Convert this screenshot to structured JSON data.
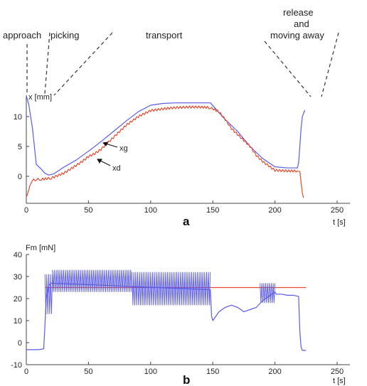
{
  "colors": {
    "blue": "#5a5ae6",
    "red": "#e64a2e",
    "axis": "#444444",
    "dash": "#333333"
  },
  "phase_labels": {
    "approach": "approach",
    "picking": "picking",
    "transport": "transport",
    "release": "release",
    "and": "and",
    "moving_away": "moving away"
  },
  "chart_data": [
    {
      "panel": "a",
      "type": "line",
      "xlabel": "t [s]",
      "ylabel": "x [mm]",
      "xlim": [
        0,
        250
      ],
      "ylim": [
        -4,
        14
      ],
      "xticks": [
        0,
        50,
        100,
        150,
        200,
        250
      ],
      "yticks": [
        0,
        5,
        10
      ],
      "series": [
        {
          "name": "xg",
          "color": "#5a5ae6",
          "x": [
            0,
            2,
            5,
            8,
            12,
            15,
            18,
            22,
            30,
            40,
            50,
            60,
            70,
            80,
            90,
            100,
            110,
            120,
            130,
            140,
            148,
            160,
            170,
            180,
            190,
            200,
            210,
            218,
            219,
            220,
            221,
            222,
            224
          ],
          "y": [
            13.5,
            12,
            8,
            2,
            1.2,
            0.5,
            0.2,
            0.4,
            1.5,
            2.7,
            4.2,
            5.8,
            7.5,
            9.2,
            10.8,
            11.9,
            12.2,
            12.3,
            12.3,
            12.3,
            12.3,
            9.5,
            7.5,
            5.0,
            3.0,
            1.6,
            1.4,
            1.4,
            2.2,
            5.0,
            8.0,
            10.0,
            11.1
          ]
        },
        {
          "name": "xd",
          "color": "#e64a2e",
          "x": [
            0,
            1,
            3,
            5,
            8,
            12,
            20,
            30,
            40,
            45,
            50,
            55,
            60,
            70,
            80,
            90,
            100,
            110,
            120,
            130,
            140,
            148,
            155,
            160,
            165,
            170,
            175,
            180,
            185,
            190,
            200,
            210,
            218,
            220,
            221,
            222,
            223
          ],
          "y": [
            -3.5,
            -3.0,
            -1.5,
            -0.7,
            -0.5,
            -0.5,
            -0.3,
            0.5,
            1.8,
            2.5,
            3.3,
            3.8,
            4.5,
            6.5,
            8.5,
            10.0,
            11.0,
            11.3,
            11.5,
            11.6,
            11.6,
            11.5,
            10.8,
            9.5,
            8.0,
            7.0,
            6.0,
            5.0,
            3.5,
            2.5,
            1.0,
            0.9,
            0.9,
            0.8,
            -1.0,
            -2.8,
            -3.6
          ]
        }
      ]
    },
    {
      "panel": "b",
      "type": "line",
      "xlabel": "t [s]",
      "ylabel": "Fm [mN]",
      "xlim": [
        0,
        250
      ],
      "ylim": [
        -10,
        40
      ],
      "xticks": [
        0,
        50,
        100,
        150,
        200,
        250
      ],
      "yticks": [
        -10,
        0,
        10,
        20,
        30,
        40
      ],
      "threshold": {
        "y": 25,
        "x_start": 15,
        "x_end": 225,
        "color": "#e64a2e"
      },
      "series": [
        {
          "name": "Fm",
          "color": "#5a5ae6",
          "x": [
            0,
            10,
            14,
            15,
            16,
            18,
            20,
            148,
            149,
            150,
            155,
            160,
            165,
            170,
            175,
            180,
            185,
            190,
            200,
            201,
            205,
            210,
            215,
            219,
            220,
            221,
            222,
            225
          ],
          "y": [
            -3.2,
            -3.2,
            -2.8,
            8,
            20,
            26,
            27,
            24,
            12,
            10,
            14,
            16,
            17,
            16,
            14,
            15,
            16,
            19,
            23,
            22,
            22,
            21.5,
            21.5,
            21,
            5,
            -2,
            -3.5,
            -3.5
          ],
          "oscillations": [
            {
              "x_start": 15,
              "x_end": 21,
              "low": 13,
              "high": 31
            },
            {
              "x_start": 21,
              "x_end": 85,
              "low": 23,
              "high": 33
            },
            {
              "x_start": 85,
              "x_end": 148,
              "low": 17,
              "high": 32
            },
            {
              "x_start": 188,
              "x_end": 200,
              "low": 18,
              "high": 27
            }
          ]
        }
      ]
    }
  ]
}
